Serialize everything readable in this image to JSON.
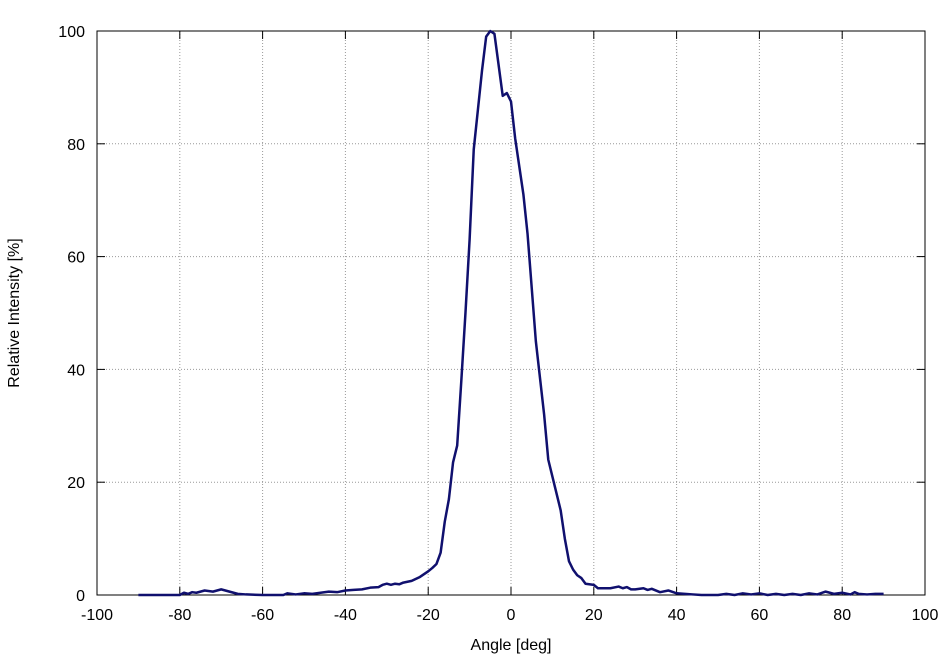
{
  "chart_data": {
    "type": "line",
    "xlabel": "Angle [deg]",
    "ylabel": "Relative Intensity [%]",
    "xlim": [
      -100,
      100
    ],
    "ylim": [
      0,
      100
    ],
    "xticks": [
      -100,
      -80,
      -60,
      -40,
      -20,
      0,
      20,
      40,
      60,
      80,
      100
    ],
    "yticks": [
      0,
      20,
      40,
      60,
      80,
      100
    ],
    "grid": true,
    "series": [
      {
        "color": "#10106e",
        "x": [
          -90,
          -80,
          -79,
          -78,
          -77,
          -76,
          -74,
          -72,
          -70,
          -68,
          -66,
          -64,
          -60,
          -55,
          -54,
          -52,
          -50,
          -48,
          -46,
          -44,
          -42,
          -40,
          -38,
          -36,
          -34,
          -32,
          -31,
          -30,
          -29,
          -28,
          -27,
          -26,
          -24,
          -22,
          -20,
          -19,
          -18,
          -17,
          -16,
          -15,
          -14,
          -13,
          -12,
          -11,
          -10,
          -9,
          -8,
          -7,
          -6,
          -5,
          -4,
          -3,
          -2,
          -1,
          0,
          1,
          3,
          4,
          6,
          8,
          9,
          10,
          12,
          13,
          14,
          15,
          16,
          17,
          18,
          20,
          21,
          24,
          26,
          27,
          28,
          29,
          30,
          32,
          33,
          34,
          36,
          38,
          40,
          42,
          44,
          46,
          50,
          52,
          54,
          56,
          58,
          60,
          62,
          64,
          66,
          68,
          70,
          72,
          74,
          76,
          78,
          80,
          82,
          83,
          84,
          86,
          88,
          90
        ],
        "values": [
          0,
          0,
          0.4,
          0.2,
          0.5,
          0.4,
          0.8,
          0.6,
          1.0,
          0.6,
          0.2,
          0.1,
          0,
          0,
          0.3,
          0.1,
          0.3,
          0.2,
          0.4,
          0.6,
          0.5,
          0.8,
          0.9,
          1.0,
          1.3,
          1.4,
          1.8,
          2.0,
          1.8,
          2.0,
          1.9,
          2.2,
          2.5,
          3.2,
          4.2,
          4.8,
          5.5,
          7.5,
          13,
          17,
          23.5,
          26.5,
          38,
          50,
          63,
          79,
          86,
          93,
          99,
          100,
          99.5,
          94,
          88.5,
          89,
          87.5,
          81,
          71,
          64,
          45,
          32,
          24,
          21,
          15,
          10,
          6,
          4.5,
          3.5,
          3,
          2,
          1.8,
          1.2,
          1.2,
          1.5,
          1.2,
          1.4,
          1.0,
          1.0,
          1.2,
          0.9,
          1.1,
          0.5,
          0.8,
          0.3,
          0.2,
          0.1,
          0,
          0,
          0.2,
          0,
          0.3,
          0.1,
          0.3,
          0,
          0.2,
          0,
          0.2,
          0,
          0.3,
          0.1,
          0.6,
          0.2,
          0.4,
          0.1,
          0.5,
          0.2,
          0.1,
          0.2,
          0.2
        ]
      }
    ]
  }
}
